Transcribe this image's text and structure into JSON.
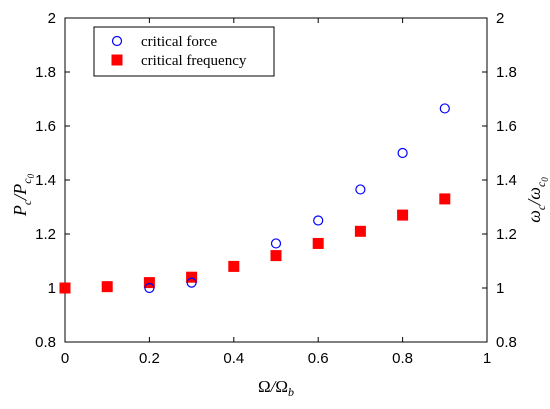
{
  "chart_data": {
    "type": "scatter",
    "xlabel": "Ω/Ω_b",
    "ylabel_left": "P_c/P_c0",
    "ylabel_right": "ω_c/ω_c0",
    "xlim": [
      0,
      1
    ],
    "ylim": [
      0.8,
      2
    ],
    "right_ylim": [
      0.8,
      2
    ],
    "x_ticks": [
      "0",
      "0.2",
      "0.4",
      "0.6",
      "0.8",
      "1"
    ],
    "y_ticks": [
      "0.8",
      "1",
      "1.2",
      "1.4",
      "1.6",
      "1.8",
      "2"
    ],
    "grid": false,
    "legend_position": "top-left",
    "series": [
      {
        "name": "critical force",
        "marker": "open-circle",
        "color": "#0000ff",
        "points": [
          {
            "x": 0.2,
            "y": 1.0
          },
          {
            "x": 0.3,
            "y": 1.02
          },
          {
            "x": 0.5,
            "y": 1.165
          },
          {
            "x": 0.6,
            "y": 1.25
          },
          {
            "x": 0.7,
            "y": 1.365
          },
          {
            "x": 0.8,
            "y": 1.5
          },
          {
            "x": 0.9,
            "y": 1.665
          }
        ]
      },
      {
        "name": "critical frequency",
        "marker": "filled-square",
        "color": "#ff0000",
        "points": [
          {
            "x": 0.0,
            "y": 1.0
          },
          {
            "x": 0.1,
            "y": 1.005
          },
          {
            "x": 0.2,
            "y": 1.02
          },
          {
            "x": 0.3,
            "y": 1.04
          },
          {
            "x": 0.4,
            "y": 1.08
          },
          {
            "x": 0.5,
            "y": 1.12
          },
          {
            "x": 0.6,
            "y": 1.165
          },
          {
            "x": 0.7,
            "y": 1.21
          },
          {
            "x": 0.8,
            "y": 1.27
          },
          {
            "x": 0.9,
            "y": 1.33
          }
        ]
      }
    ]
  }
}
